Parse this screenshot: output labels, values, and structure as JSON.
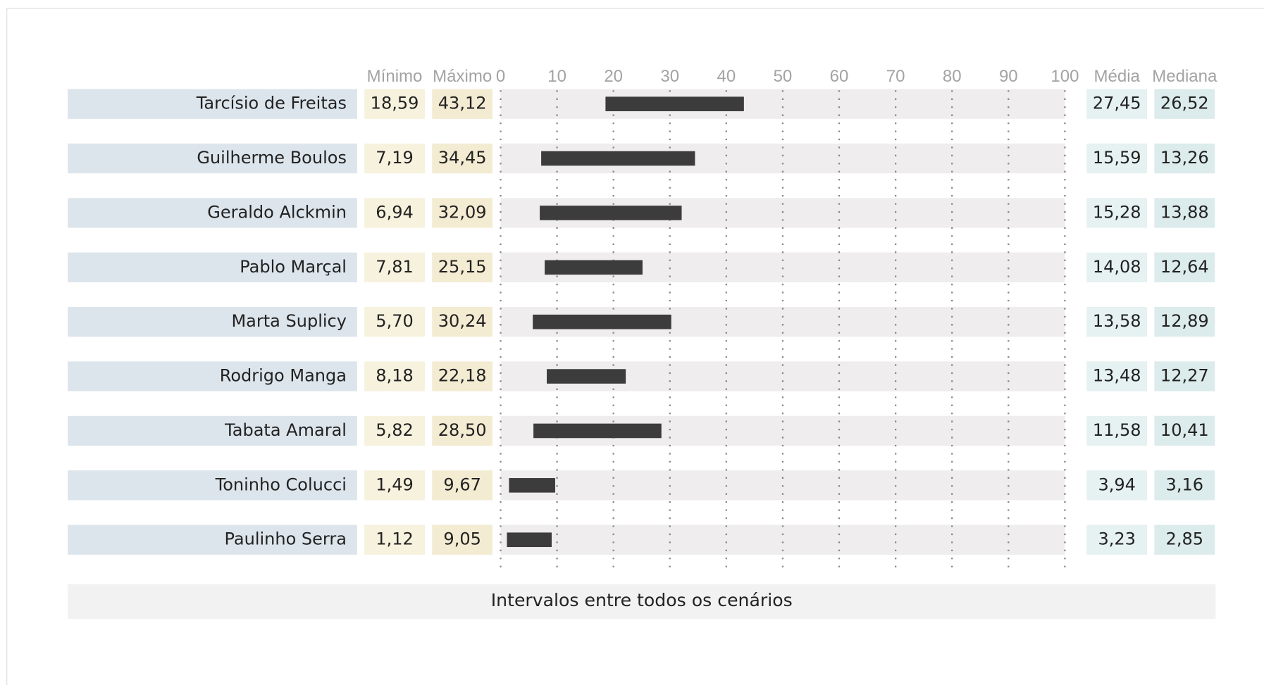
{
  "chart_data": {
    "type": "range",
    "caption": "Intervalos entre todos os cenários",
    "categories": [
      "Tarcísio de Freitas",
      "Guilherme Boulos",
      "Geraldo Alckmin",
      "Pablo Marçal",
      "Marta Suplicy",
      "Rodrigo Manga",
      "Tabata Amaral",
      "Toninho Colucci",
      "Paulinho Serra"
    ],
    "series": [
      {
        "name": "Mínimo",
        "color": "#f7f2de",
        "values": [
          18.59,
          7.19,
          6.94,
          7.81,
          5.7,
          8.18,
          5.82,
          1.49,
          1.12
        ],
        "value_labels": [
          "18,59",
          "7,19",
          "6,94",
          "7,81",
          "5,70",
          "8,18",
          "5,82",
          "1,49",
          "1,12"
        ]
      },
      {
        "name": "Máximo",
        "color": "#f3ebd2",
        "values": [
          43.12,
          34.45,
          32.09,
          25.15,
          30.24,
          22.18,
          28.5,
          9.67,
          9.05
        ],
        "value_labels": [
          "43,12",
          "34,45",
          "32,09",
          "25,15",
          "30,24",
          "22,18",
          "28,50",
          "9,67",
          "9,05"
        ]
      },
      {
        "name": "Média",
        "color": "#e6f1f1",
        "values": [
          27.45,
          15.59,
          15.28,
          14.08,
          13.58,
          13.48,
          11.58,
          3.94,
          3.23
        ],
        "value_labels": [
          "27,45",
          "15,59",
          "15,28",
          "14,08",
          "13,58",
          "13,48",
          "11,58",
          "3,94",
          "3,23"
        ]
      },
      {
        "name": "Mediana",
        "color": "#dcebeb",
        "values": [
          26.52,
          13.26,
          13.88,
          12.64,
          12.89,
          12.27,
          10.41,
          3.16,
          2.85
        ],
        "value_labels": [
          "26,52",
          "13,26",
          "13,88",
          "12,64",
          "12,89",
          "12,27",
          "10,41",
          "3,16",
          "2,85"
        ]
      }
    ],
    "bar_color": "#3c3c3c",
    "xlim": [
      0,
      100
    ],
    "xticks": [
      0,
      10,
      20,
      30,
      40,
      50,
      60,
      70,
      80,
      90,
      100
    ],
    "grid": true
  }
}
